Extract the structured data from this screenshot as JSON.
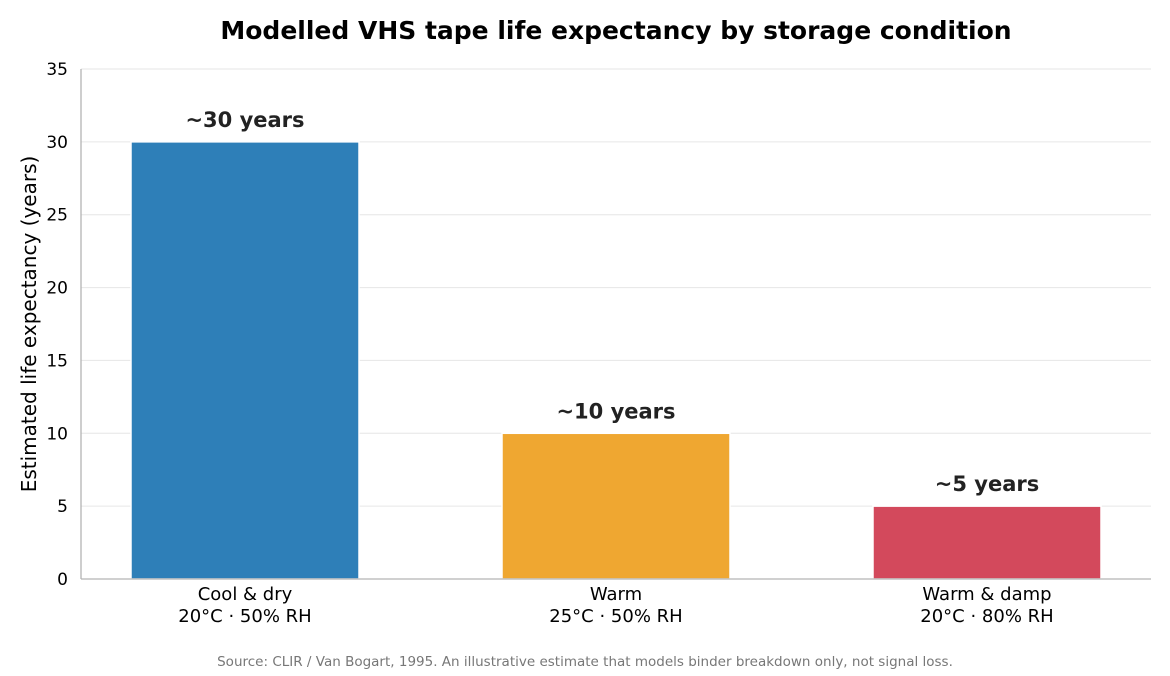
{
  "chart_data": {
    "type": "bar",
    "title": "Modelled VHS tape life expectancy by storage condition",
    "xlabel": "",
    "ylabel": "Estimated life expectancy (years)",
    "ylim": [
      0,
      35
    ],
    "yticks": [
      0,
      5,
      10,
      15,
      20,
      25,
      30,
      35
    ],
    "grid": true,
    "categories": [
      [
        "Cool & dry",
        "20°C · 50% RH"
      ],
      [
        "Warm",
        "25°C · 50% RH"
      ],
      [
        "Warm & damp",
        "20°C · 80% RH"
      ]
    ],
    "values": [
      30,
      10,
      5
    ],
    "data_labels": [
      "~30 years",
      "~10 years",
      "~5 years"
    ],
    "colors": [
      "#2e7fb8",
      "#efa731",
      "#d3495c"
    ],
    "source": "Source: CLIR / Van Bogart, 1995. An illustrative estimate that models binder breakdown only, not signal loss."
  }
}
